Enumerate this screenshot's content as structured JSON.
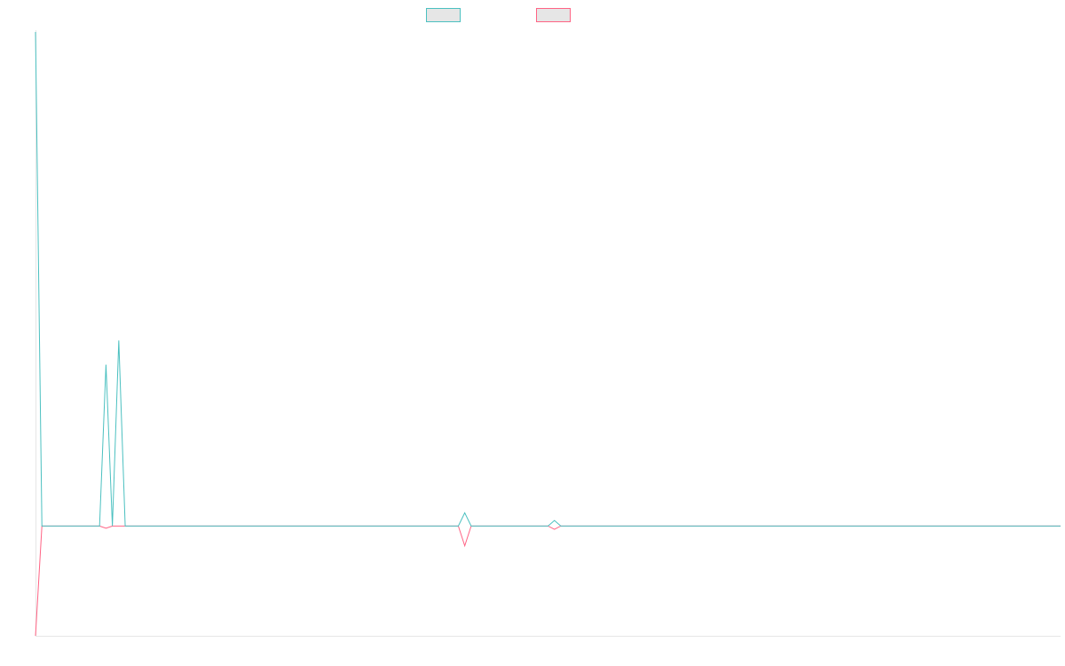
{
  "chart_data": {
    "type": "line",
    "title": "",
    "xlabel": "",
    "ylabel": "",
    "legend_position": "top-center",
    "grid": false,
    "x": [
      0,
      1,
      2,
      3,
      4,
      5,
      6,
      7,
      8,
      9,
      10,
      11,
      12,
      13,
      14,
      15,
      16,
      17,
      18,
      19,
      20,
      21,
      22,
      23,
      24,
      25,
      26,
      27,
      28,
      29,
      30,
      31,
      32,
      33,
      34,
      35,
      36,
      37,
      38,
      39,
      40,
      41,
      42,
      43,
      44,
      45,
      46,
      47,
      48,
      49,
      50,
      51,
      52,
      53,
      54,
      55,
      56,
      57,
      58,
      59,
      60,
      61,
      62,
      63,
      64,
      65,
      66,
      67,
      68,
      69,
      70,
      71,
      72,
      73,
      74,
      75,
      76,
      77,
      78,
      79,
      80,
      81,
      82,
      83,
      84,
      85,
      86,
      87,
      88,
      89,
      90,
      91,
      92,
      93,
      94,
      95,
      96,
      97,
      98,
      99,
      100,
      101,
      102,
      103,
      104,
      105,
      106,
      107,
      108,
      109,
      110,
      111,
      112,
      113,
      114,
      115,
      116,
      117,
      118,
      119,
      120,
      121,
      122,
      123,
      124,
      125,
      126,
      127,
      128,
      129,
      130,
      131,
      132,
      133,
      134,
      135,
      136,
      137,
      138,
      139,
      140,
      141,
      142,
      143,
      144,
      145,
      146,
      147,
      148,
      149,
      150,
      151,
      152,
      153,
      154,
      155,
      156,
      157,
      158,
      159,
      160
    ],
    "ylim": [
      -100,
      450
    ],
    "series": [
      {
        "color": "#4bc0c0",
        "values": [
          450,
          0,
          0,
          0,
          0,
          0,
          0,
          0,
          0,
          0,
          0,
          147,
          0,
          169,
          0,
          0,
          0,
          0,
          0,
          0,
          0,
          0,
          0,
          0,
          0,
          0,
          0,
          0,
          0,
          0,
          0,
          0,
          0,
          0,
          0,
          0,
          0,
          0,
          0,
          0,
          0,
          0,
          0,
          0,
          0,
          0,
          0,
          0,
          0,
          0,
          0,
          0,
          0,
          0,
          0,
          0,
          0,
          0,
          0,
          0,
          0,
          0,
          0,
          0,
          0,
          0,
          0,
          12,
          0,
          0,
          0,
          0,
          0,
          0,
          0,
          0,
          0,
          0,
          0,
          0,
          0,
          5,
          0,
          0,
          0,
          0,
          0,
          0,
          0,
          0,
          0,
          0,
          0,
          0,
          0,
          0,
          0,
          0,
          0,
          0,
          0,
          0,
          0,
          0,
          0,
          0,
          0,
          0,
          0,
          0,
          0,
          0,
          0,
          0,
          0,
          0,
          0,
          0,
          0,
          0,
          0,
          0,
          0,
          0,
          0,
          0,
          0,
          0,
          0,
          0,
          0,
          0,
          0,
          0,
          0,
          0,
          0,
          0,
          0,
          0,
          0,
          0,
          0,
          0,
          0,
          0,
          0,
          0,
          0,
          0,
          0,
          0,
          0,
          0,
          0,
          0,
          0,
          0,
          0,
          0,
          0
        ]
      },
      {
        "color": "#ff6384",
        "values": [
          -100,
          0,
          0,
          0,
          0,
          0,
          0,
          0,
          0,
          0,
          0,
          -2,
          0,
          0,
          0,
          0,
          0,
          0,
          0,
          0,
          0,
          0,
          0,
          0,
          0,
          0,
          0,
          0,
          0,
          0,
          0,
          0,
          0,
          0,
          0,
          0,
          0,
          0,
          0,
          0,
          0,
          0,
          0,
          0,
          0,
          0,
          0,
          0,
          0,
          0,
          0,
          0,
          0,
          0,
          0,
          0,
          0,
          0,
          0,
          0,
          0,
          0,
          0,
          0,
          0,
          0,
          0,
          -18,
          0,
          0,
          0,
          0,
          0,
          0,
          0,
          0,
          0,
          0,
          0,
          0,
          0,
          -3,
          0,
          0,
          0,
          0,
          0,
          0,
          0,
          0,
          0,
          0,
          0,
          0,
          0,
          0,
          0,
          0,
          0,
          0,
          0,
          0,
          0,
          0,
          0,
          0,
          0,
          0,
          0,
          0,
          0,
          0,
          0,
          0,
          0,
          0,
          0,
          0,
          0,
          0,
          0,
          0,
          0,
          0,
          0,
          0,
          0,
          0,
          0,
          0,
          0,
          0,
          0,
          0,
          0,
          0,
          0,
          0,
          0,
          0,
          0,
          0,
          0,
          0,
          0,
          0,
          0,
          0,
          0,
          0,
          0,
          0,
          0,
          0,
          0,
          0,
          0,
          0,
          0,
          0,
          0
        ]
      }
    ]
  }
}
